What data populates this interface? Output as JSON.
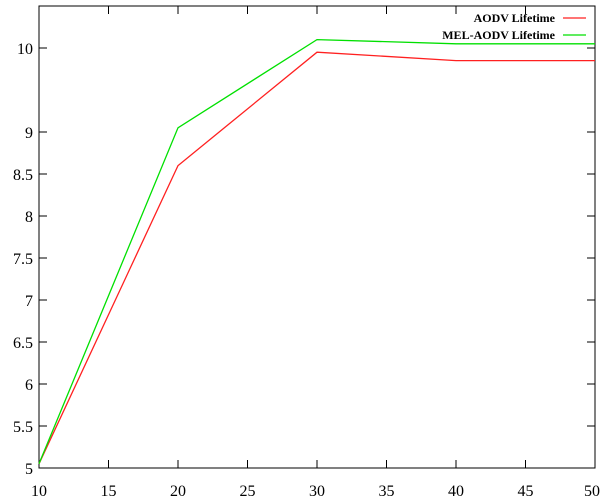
{
  "chart_data": {
    "type": "line",
    "title": "",
    "xlabel": "",
    "ylabel": "",
    "xlim": [
      10,
      50
    ],
    "ylim": [
      5,
      10.5
    ],
    "x": [
      10,
      20,
      30,
      40,
      50
    ],
    "xticks": [
      "10",
      "15",
      "20",
      "25",
      "30",
      "35",
      "40",
      "45",
      "50"
    ],
    "xtick_values": [
      10,
      15,
      20,
      25,
      30,
      35,
      40,
      45,
      50
    ],
    "yticks": [
      "5",
      "5.5",
      "6",
      "6.5",
      "7",
      "7.5",
      "8",
      "8.5",
      "9",
      "10"
    ],
    "ytick_values": [
      5,
      5.5,
      6,
      6.5,
      7,
      7.5,
      8,
      8.5,
      9,
      10
    ],
    "grid": false,
    "legend": "top-right",
    "series": [
      {
        "name": "AODV Lifetime",
        "color": "#ff2020",
        "values": [
          5.05,
          8.6,
          9.95,
          9.85,
          9.85
        ]
      },
      {
        "name": "MEL-AODV Lifetime",
        "color": "#00e000",
        "values": [
          5.05,
          9.05,
          10.1,
          10.05,
          10.05
        ]
      }
    ]
  }
}
